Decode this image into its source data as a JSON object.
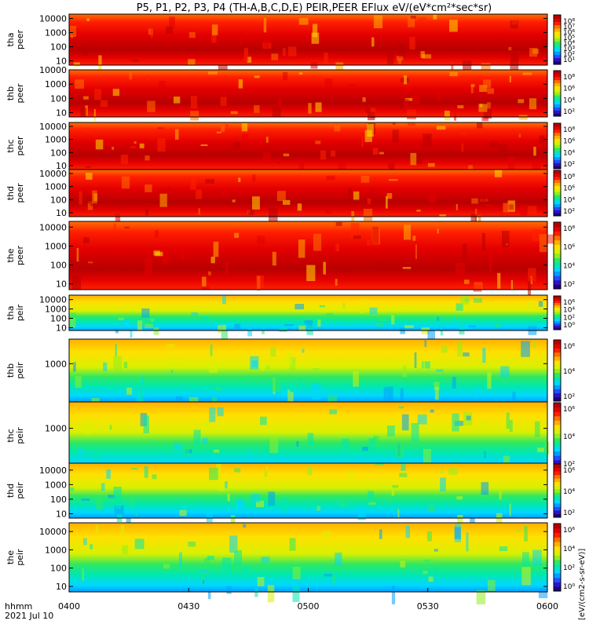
{
  "title": "P5, P1, P2, P3, P4 (TH-A,B,C,D,E) PEIR,PEER EFlux eV/(eV*cm²*sec*sr)",
  "time_axis": {
    "row_label": "hhmm",
    "date_label": "2021 Jul 10",
    "ticks": [
      "0400",
      "0430",
      "0500",
      "0530",
      "0600"
    ],
    "range": [
      "04:00",
      "06:00"
    ]
  },
  "colorbar_unit_label": "[eV/(cm2-s-sr-eV)]",
  "colorbar_scale": {
    "steps": [
      "#1a0078",
      "#3010c8",
      "#2050ff",
      "#00a0ff",
      "#00d8ff",
      "#00e8b0",
      "#30e860",
      "#90ee20",
      "#d8f000",
      "#ffe000",
      "#ffb000",
      "#ff7000",
      "#ff2000",
      "#e40000",
      "#b80000"
    ]
  },
  "chart_data": [
    {
      "type": "heatmap",
      "probe": "tha",
      "species": "peer",
      "ylabel": "tha\npeer",
      "ylog": true,
      "y_range": [
        5,
        20000
      ],
      "y_ticks": [
        "10000",
        "1000",
        "100",
        "10"
      ],
      "colorbar_ticks": [
        "10⁸",
        "10⁷",
        "10⁶",
        "10⁵",
        "10⁴",
        "10³",
        "10²",
        "10¹"
      ]
    },
    {
      "type": "heatmap",
      "probe": "thb",
      "species": "peer",
      "ylabel": "thb\npeer",
      "ylog": true,
      "y_range": [
        5,
        10000
      ],
      "y_ticks": [
        "10000",
        "1000",
        "100",
        "10"
      ],
      "colorbar_ticks": [
        "10⁸",
        "10⁶",
        "10⁴",
        "10²"
      ]
    },
    {
      "type": "heatmap",
      "probe": "thc",
      "species": "peer",
      "ylabel": "thc\npeer",
      "ylog": true,
      "y_range": [
        5,
        20000
      ],
      "y_ticks": [
        "10000",
        "1000",
        "100",
        "10"
      ],
      "colorbar_ticks": [
        "10⁸",
        "10⁶",
        "10⁴",
        "10²"
      ]
    },
    {
      "type": "heatmap",
      "probe": "thd",
      "species": "peer",
      "ylabel": "thd\npeer",
      "ylog": true,
      "y_range": [
        5,
        20000
      ],
      "y_ticks": [
        "10000",
        "1000",
        "100",
        "10"
      ],
      "colorbar_ticks": [
        "10⁸",
        "10⁶",
        "10⁴",
        "10²"
      ]
    },
    {
      "type": "heatmap",
      "probe": "the",
      "species": "peer",
      "ylabel": "the\npeer",
      "ylog": true,
      "y_range": [
        5,
        20000
      ],
      "y_ticks": [
        "10000",
        "1000",
        "100",
        "10"
      ],
      "colorbar_ticks": [
        "10⁸",
        "10⁶",
        "10⁴",
        "10²"
      ]
    },
    {
      "type": "heatmap",
      "probe": "tha",
      "species": "peir",
      "ylabel": "tha\npeir",
      "ylog": true,
      "y_range": [
        5,
        30000
      ],
      "y_ticks": [
        "10000",
        "1000",
        "100",
        "10"
      ],
      "colorbar_ticks": [
        "10⁶",
        "10⁴",
        "10²",
        "10⁰"
      ]
    },
    {
      "type": "heatmap",
      "probe": "thb",
      "species": "peir",
      "ylabel": "thb\npeir",
      "ylog": true,
      "y_range": [
        5,
        30000
      ],
      "y_ticks": [
        "1000"
      ],
      "colorbar_ticks": [
        "10⁶",
        "10⁴",
        "10²"
      ]
    },
    {
      "type": "heatmap",
      "probe": "thc",
      "species": "peir",
      "ylabel": "thc\npeir",
      "ylog": true,
      "y_range": [
        5,
        30000
      ],
      "y_ticks": [
        "1000"
      ],
      "colorbar_ticks": [
        "10⁶",
        "10⁴",
        "10²"
      ]
    },
    {
      "type": "heatmap",
      "probe": "thd",
      "species": "peir",
      "ylabel": "thd\npeir",
      "ylog": true,
      "y_range": [
        5,
        30000
      ],
      "y_ticks": [
        "10000",
        "1000",
        "100",
        "10"
      ],
      "colorbar_ticks": [
        "10⁶",
        "10⁴",
        "10²"
      ]
    },
    {
      "type": "heatmap",
      "probe": "the",
      "species": "peir",
      "ylabel": "the\npeir",
      "ylog": true,
      "y_range": [
        5,
        30000
      ],
      "y_ticks": [
        "10000",
        "1000",
        "100",
        "10"
      ],
      "colorbar_ticks": [
        "10⁶",
        "10⁴",
        "10²",
        "10⁰"
      ]
    }
  ]
}
